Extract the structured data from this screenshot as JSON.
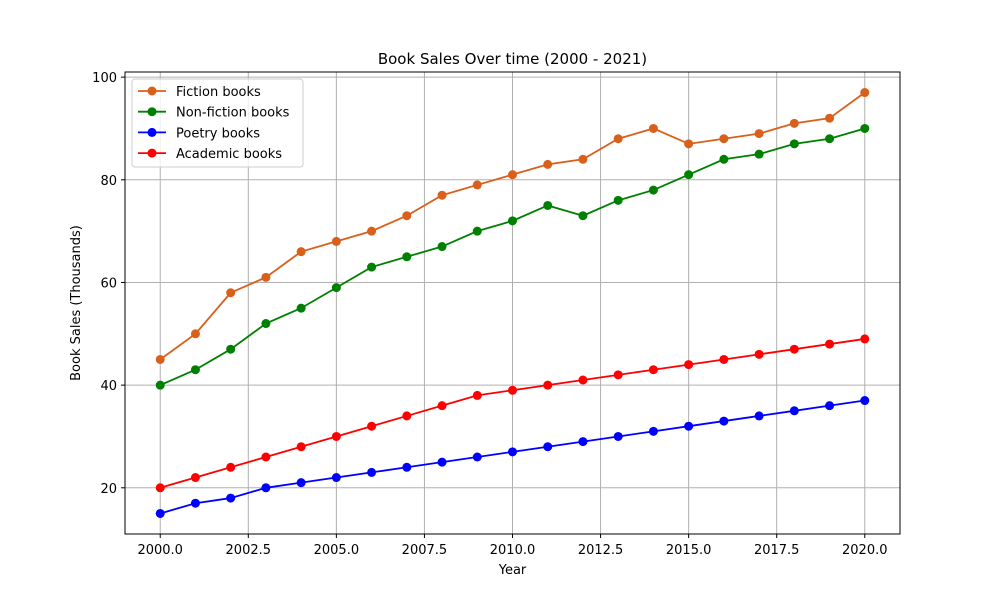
{
  "chart_data": {
    "type": "line",
    "title": "Book Sales Over time (2000 - 2021)",
    "xlabel": "Year",
    "ylabel": "Book Sales (Thousands)",
    "x": [
      2000,
      2001,
      2002,
      2003,
      2004,
      2005,
      2006,
      2007,
      2008,
      2009,
      2010,
      2011,
      2012,
      2013,
      2014,
      2015,
      2016,
      2017,
      2018,
      2019,
      2020
    ],
    "xlim": [
      1999,
      2021
    ],
    "ylim": [
      11,
      101
    ],
    "xticks": [
      2000.0,
      2002.5,
      2005.0,
      2007.5,
      2010.0,
      2012.5,
      2015.0,
      2017.5,
      2020.0
    ],
    "xtick_labels": [
      "2000.0",
      "2002.5",
      "2005.0",
      "2007.5",
      "2010.0",
      "2012.5",
      "2015.0",
      "2017.5",
      "2020.0"
    ],
    "yticks": [
      20,
      40,
      60,
      80,
      100
    ],
    "ytick_labels": [
      "20",
      "40",
      "60",
      "80",
      "100"
    ],
    "grid": true,
    "legend_position": "top-left",
    "series": [
      {
        "name": "Fiction books",
        "color": "#d95f1a",
        "values": [
          45,
          50,
          58,
          61,
          66,
          68,
          70,
          73,
          77,
          79,
          81,
          83,
          84,
          88,
          90,
          87,
          88,
          89,
          91,
          92,
          97
        ]
      },
      {
        "name": "Non-fiction books",
        "color": "#008000",
        "values": [
          40,
          43,
          47,
          52,
          55,
          59,
          63,
          65,
          67,
          70,
          72,
          75,
          73,
          76,
          78,
          81,
          84,
          85,
          87,
          88,
          90
        ]
      },
      {
        "name": "Poetry books",
        "color": "#0000ff",
        "values": [
          15,
          17,
          18,
          20,
          21,
          22,
          23,
          24,
          25,
          26,
          27,
          28,
          29,
          30,
          31,
          32,
          33,
          34,
          35,
          36,
          37
        ]
      },
      {
        "name": "Academic books",
        "color": "#ff0000",
        "values": [
          20,
          22,
          24,
          26,
          28,
          30,
          32,
          34,
          36,
          38,
          39,
          40,
          41,
          42,
          43,
          44,
          45,
          46,
          47,
          48,
          49
        ]
      }
    ]
  }
}
